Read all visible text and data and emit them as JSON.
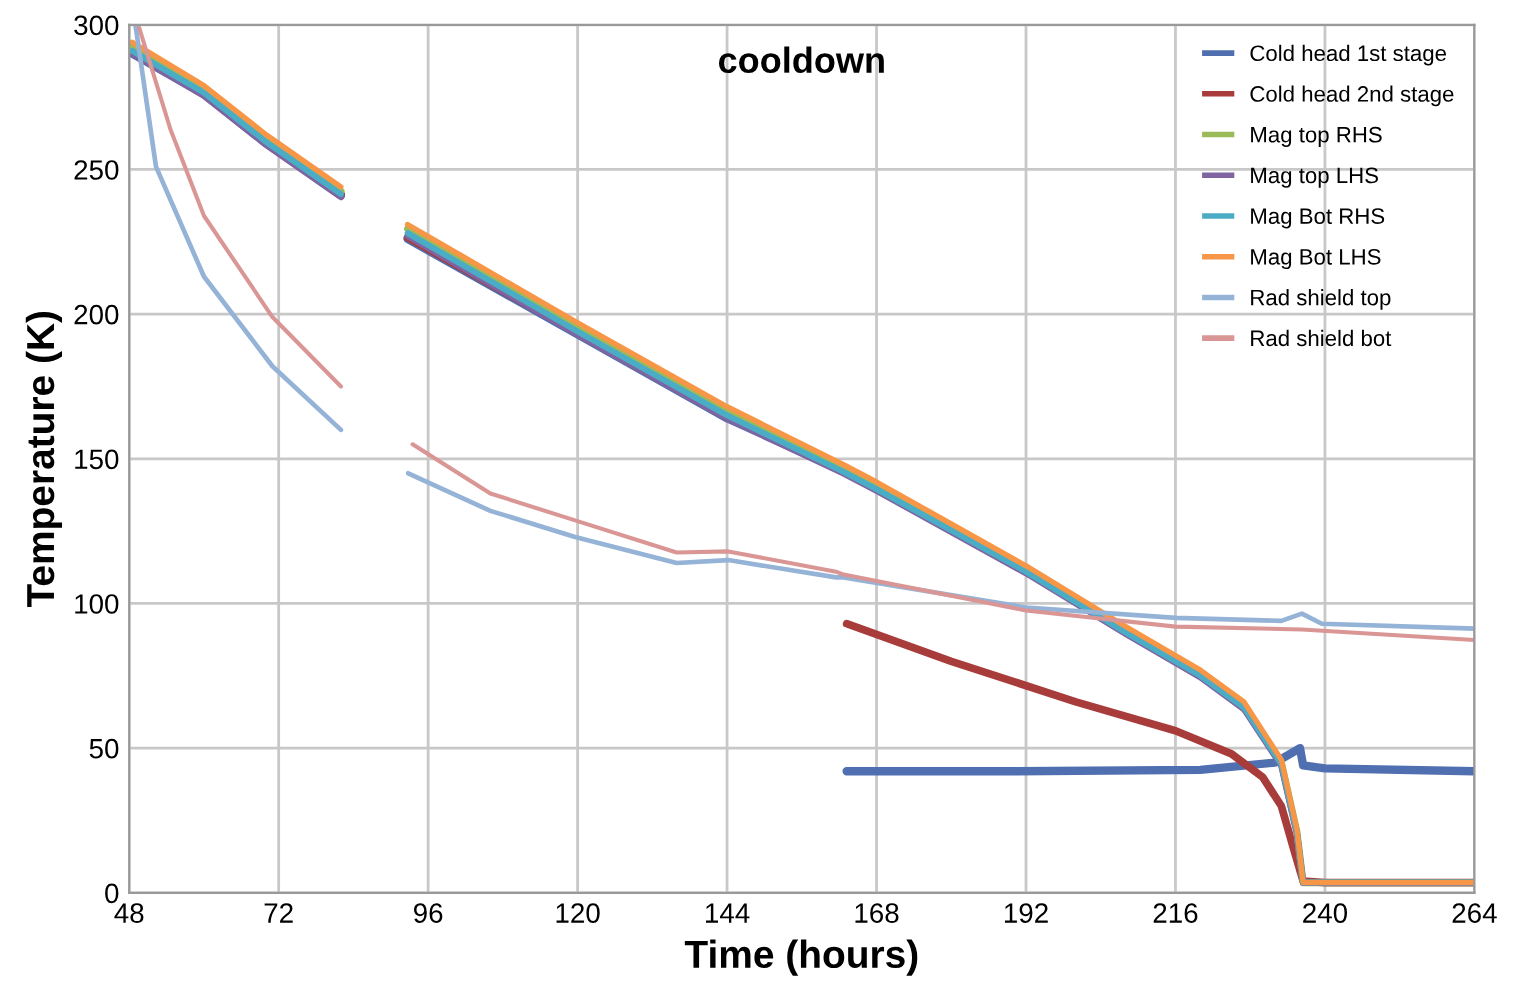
{
  "chart_data": {
    "type": "line",
    "title": "cooldown",
    "xlabel": "Time (hours)",
    "ylabel": "Temperature (K)",
    "xlim": [
      48,
      264
    ],
    "xticks": [
      48,
      72,
      96,
      120,
      144,
      168,
      192,
      216,
      240,
      264
    ],
    "ylim": [
      0,
      300
    ],
    "yticks": [
      0,
      50,
      100,
      150,
      200,
      250,
      300
    ],
    "grid": true,
    "legend": "top right",
    "line_style": "solid",
    "series": [
      {
        "name": "Cold head 1st stage",
        "color": "#4f6fb0",
        "x": [
          48.5,
          60,
          70,
          82,
          87,
          92.7,
          120,
          144,
          162.5,
          163,
          163.2,
          190,
          220,
          232,
          236,
          236.5,
          240,
          264
        ],
        "values": [
          290,
          276,
          259,
          241,
          null,
          226,
          193,
          164,
          146,
          null,
          42,
          42,
          42.5,
          45,
          50,
          44,
          43,
          42
        ]
      },
      {
        "name": "Cold head 2nd stage",
        "color": "#a83c3a",
        "x": [
          48.5,
          60,
          70,
          82,
          87,
          92.7,
          120,
          144,
          162.5,
          163,
          163.2,
          180,
          200,
          216,
          225,
          230,
          233,
          235,
          236.5,
          240,
          264
        ],
        "values": [
          290.5,
          276.5,
          259.5,
          241.5,
          null,
          226.5,
          193.5,
          164.5,
          146.5,
          null,
          93,
          80,
          66,
          56,
          48,
          40,
          30,
          15,
          4,
          3.5,
          3.5
        ]
      },
      {
        "name": "Mag top RHS",
        "color": "#9bbb59",
        "x": [
          48.5,
          60,
          70,
          82,
          87,
          92.7,
          120,
          144,
          162.7,
          168,
          192,
          208,
          220,
          227,
          233,
          235.5,
          236.5,
          264
        ],
        "values": [
          292.5,
          277.5,
          260.5,
          242.5,
          null,
          229.5,
          195.5,
          166.5,
          146.5,
          140.5,
          111.5,
          90.5,
          75.5,
          64.5,
          45,
          21,
          3.5,
          3.5
        ]
      },
      {
        "name": "Mag top LHS",
        "color": "#8064a2",
        "x": [
          48.5,
          60,
          70,
          82,
          87,
          92.7,
          120,
          144,
          162.7,
          168,
          192,
          208,
          220,
          227,
          233,
          235.5,
          236.5,
          264
        ],
        "values": [
          290,
          275.5,
          258.5,
          240.5,
          null,
          227,
          193,
          164,
          145,
          139,
          110.5,
          89.5,
          74.5,
          63.5,
          44,
          20.5,
          3.5,
          3.5
        ]
      },
      {
        "name": "Mag Bot RHS",
        "color": "#4bacc6",
        "x": [
          48.5,
          60,
          70,
          82,
          87,
          92.7,
          120,
          144,
          162.7,
          168,
          192,
          208,
          220,
          227,
          233,
          235.5,
          236.5,
          264
        ],
        "values": [
          291,
          276.5,
          259.5,
          241.5,
          null,
          228,
          194,
          165,
          145.5,
          139.5,
          111,
          90,
          75,
          64,
          44.5,
          21,
          3.5,
          3.5
        ]
      },
      {
        "name": "Mag Bot LHS",
        "color": "#f79646",
        "x": [
          48.5,
          60,
          70,
          82,
          87,
          92.7,
          120,
          144,
          162.7,
          168,
          192,
          208,
          220,
          227,
          233,
          235.5,
          236.5,
          264
        ],
        "values": [
          294,
          279,
          262,
          244,
          null,
          231,
          197,
          168,
          148,
          142,
          113,
          92,
          77,
          66,
          46,
          22,
          3.5,
          3.5
        ]
      },
      {
        "name": "Rad shield top",
        "color": "#95b3d7",
        "x": [
          49,
          52.3,
          60,
          71,
          82,
          87,
          92.8,
          106,
          119.6,
          135.9,
          144.2,
          161.5,
          162.7,
          192,
          216,
          233,
          236.3,
          239.5,
          264
        ],
        "values": [
          300,
          251,
          213,
          182,
          160,
          null,
          145,
          132,
          123,
          114,
          115,
          109,
          109,
          98.6,
          95,
          94,
          96.5,
          93,
          91.3
        ]
      },
      {
        "name": "Rad shield bot",
        "color": "#d99694",
        "x": [
          49.6,
          54.6,
          60,
          71,
          82,
          87,
          93.5,
          106,
          119.6,
          135.9,
          144.2,
          161.5,
          162.7,
          192,
          216,
          236.3,
          264
        ],
        "values": [
          299,
          264,
          234,
          199,
          175,
          null,
          155,
          138,
          128.7,
          117.6,
          118,
          111,
          110,
          97.6,
          92,
          91,
          87.4
        ]
      }
    ]
  }
}
